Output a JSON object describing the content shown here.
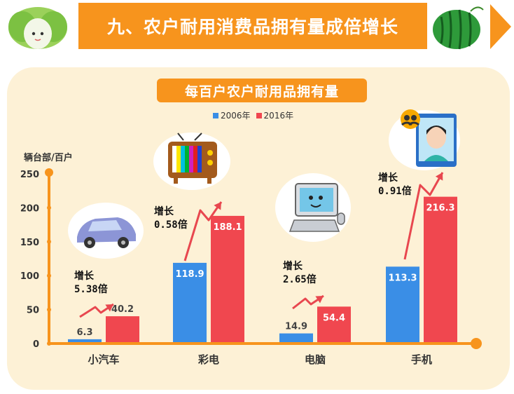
{
  "header": {
    "title": "九、农户耐用消费品拥有量成倍增长"
  },
  "panel": {
    "subtitle": "每百户农户耐用品拥有量"
  },
  "chart_data": {
    "type": "bar",
    "ylabel": "辆台部/百户",
    "ylim": [
      0,
      250
    ],
    "yticks": [
      0,
      50,
      100,
      150,
      200,
      250
    ],
    "categories": [
      "小汽车",
      "彩电",
      "电脑",
      "手机"
    ],
    "series": [
      {
        "name": "2006年",
        "color": "#3a8ee6",
        "values": [
          6.3,
          118.9,
          14.9,
          113.3
        ]
      },
      {
        "name": "2016年",
        "color": "#f0474f",
        "values": [
          40.2,
          188.1,
          54.4,
          216.3
        ]
      }
    ],
    "legend_position": "top-center",
    "grid": false,
    "annotations": [
      {
        "line1": "增长",
        "line2": "5.38倍"
      },
      {
        "line1": "增长",
        "line2": "0.58倍"
      },
      {
        "line1": "增长",
        "line2": "2.65倍"
      },
      {
        "line1": "增长",
        "line2": "0.91倍"
      }
    ]
  },
  "colors": {
    "accent": "#f7941d",
    "panel": "#fdf1d6",
    "arrow": "#e8474f"
  },
  "icons": [
    "cabbage-icon",
    "watermelon-icon",
    "car-icon",
    "tv-icon",
    "computer-icon",
    "phone-icon"
  ]
}
